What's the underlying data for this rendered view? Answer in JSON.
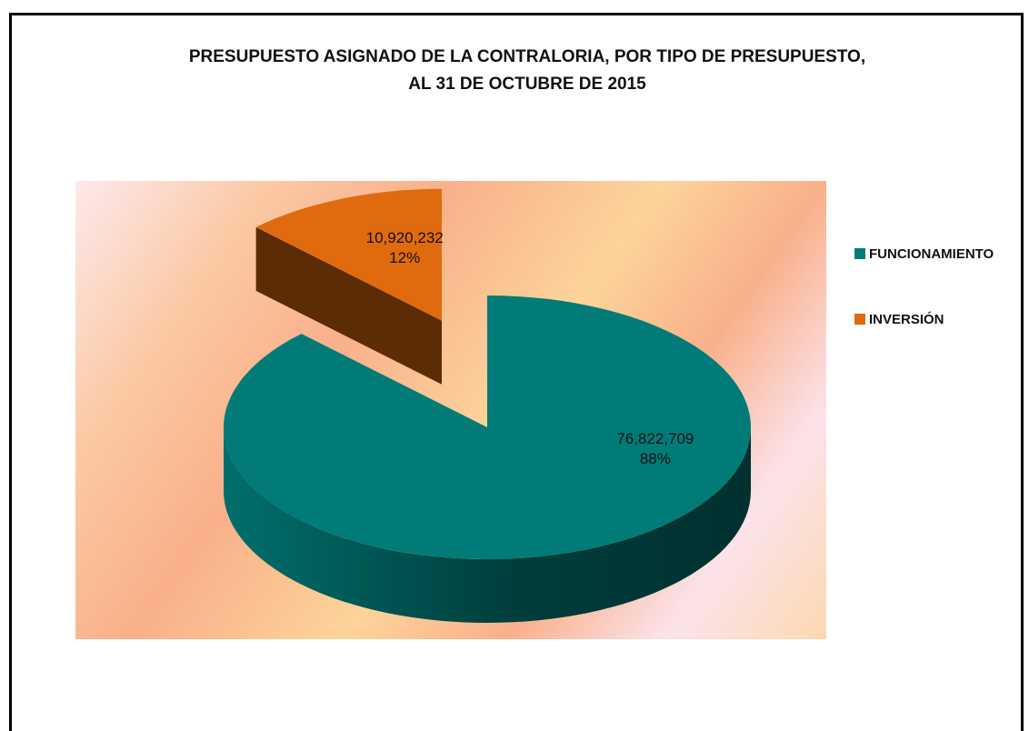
{
  "chart_data": {
    "type": "pie",
    "title_lines": [
      "PRESUPUESTO ASIGNADO DE LA CONTRALORIA, POR TIPO DE PRESUPUESTO,",
      "AL 31 DE OCTUBRE  DE 2015"
    ],
    "categories": [
      "FUNCIONAMIENTO",
      "INVERSIÓN"
    ],
    "values": [
      76822709,
      10920232
    ],
    "value_labels": [
      "76,822,709",
      "10,920,232"
    ],
    "percent_labels": [
      "88%",
      "12%"
    ],
    "colors": [
      "#007b78",
      "#e06a0e"
    ],
    "side_colors": [
      "#005a57",
      "#5c2c05"
    ],
    "legend_position": "right",
    "exploded": "INVERSIÓN",
    "style": "3d"
  }
}
